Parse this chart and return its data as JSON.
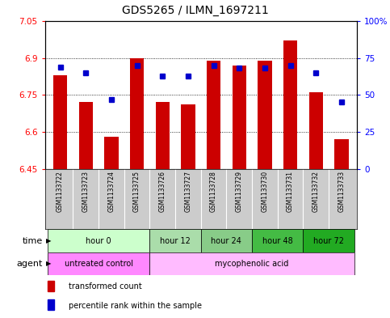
{
  "title": "GDS5265 / ILMN_1697211",
  "samples": [
    "GSM1133722",
    "GSM1133723",
    "GSM1133724",
    "GSM1133725",
    "GSM1133726",
    "GSM1133727",
    "GSM1133728",
    "GSM1133729",
    "GSM1133730",
    "GSM1133731",
    "GSM1133732",
    "GSM1133733"
  ],
  "transformed_count": [
    6.83,
    6.72,
    6.58,
    6.9,
    6.72,
    6.71,
    6.89,
    6.87,
    6.89,
    6.97,
    6.76,
    6.57
  ],
  "percentile_rank": [
    69,
    65,
    47,
    70,
    63,
    63,
    70,
    68,
    68,
    70,
    65,
    45
  ],
  "ylim_left": [
    6.45,
    7.05
  ],
  "ylim_right": [
    0,
    100
  ],
  "yticks_left": [
    6.45,
    6.6,
    6.75,
    6.9,
    7.05
  ],
  "yticks_right": [
    0,
    25,
    50,
    75,
    100
  ],
  "ytick_labels_left": [
    "6.45",
    "6.6",
    "6.75",
    "6.9",
    "7.05"
  ],
  "ytick_labels_right": [
    "0",
    "25",
    "50",
    "75",
    "100%"
  ],
  "bar_color": "#cc0000",
  "dot_color": "#0000cc",
  "bar_baseline": 6.45,
  "time_groups": [
    {
      "label": "hour 0",
      "samples": [
        0,
        1,
        2,
        3
      ],
      "color": "#ccffcc"
    },
    {
      "label": "hour 12",
      "samples": [
        4,
        5
      ],
      "color": "#aaddaa"
    },
    {
      "label": "hour 24",
      "samples": [
        6,
        7
      ],
      "color": "#88cc88"
    },
    {
      "label": "hour 48",
      "samples": [
        8,
        9
      ],
      "color": "#44bb44"
    },
    {
      "label": "hour 72",
      "samples": [
        10,
        11
      ],
      "color": "#22aa22"
    }
  ],
  "agent_groups": [
    {
      "label": "untreated control",
      "samples": [
        0,
        1,
        2,
        3
      ],
      "color": "#ff88ff"
    },
    {
      "label": "mycophenolic acid",
      "samples": [
        4,
        5,
        6,
        7,
        8,
        9,
        10,
        11
      ],
      "color": "#ffbbff"
    }
  ],
  "background_color": "#ffffff",
  "plot_bg_color": "#ffffff",
  "sample_bg_color": "#cccccc",
  "legend_red_color": "#cc0000",
  "legend_blue_color": "#0000cc"
}
